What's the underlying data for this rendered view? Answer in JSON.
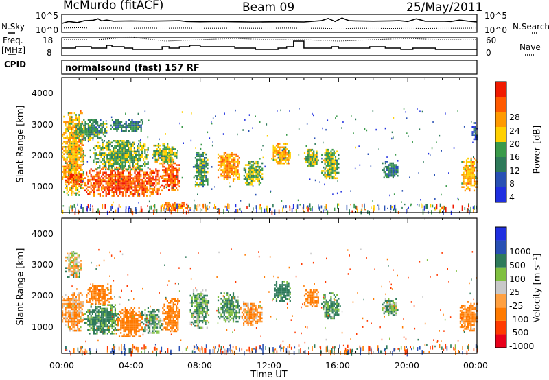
{
  "header": {
    "station": "McMurdo (fitACF)",
    "beam": "Beam 09",
    "date": "25/May/2011"
  },
  "noise_panel": {
    "left_label": "N.Sky",
    "right_label": "N.Search",
    "left_ticks": [
      "10^5",
      "10^0"
    ],
    "right_ticks": [
      "10^5",
      "10^0"
    ]
  },
  "freq_panel": {
    "left_label_line1": "Freq.",
    "left_label_line2": "[MHz]",
    "right_label": "Nave",
    "left_ticks": [
      "18",
      "8"
    ],
    "right_ticks": [
      "60",
      "0"
    ]
  },
  "cpid": {
    "label": "CPID",
    "value": "normalsound (fast) 157 RF"
  },
  "power_panel": {
    "ylabel": "Slant Range [km]",
    "yticks": [
      "4000",
      "3000",
      "2000",
      "1000"
    ],
    "colorbar_label": "Power [dB]",
    "colorbar_ticks": [
      "28",
      "24",
      "20",
      "16",
      "12",
      "8",
      "4"
    ]
  },
  "velocity_panel": {
    "ylabel": "Slant Range [km]",
    "yticks": [
      "4000",
      "3000",
      "2000",
      "1000"
    ],
    "colorbar_label": "Velocity [m s⁻¹]",
    "colorbar_ticks": [
      "1000",
      "500",
      "100",
      "25",
      "-25",
      "-100",
      "-500",
      "-1000"
    ]
  },
  "xaxis": {
    "label": "Time UT",
    "ticks": [
      "00:00",
      "04:00",
      "08:00",
      "12:00",
      "16:00",
      "20:00",
      "00:00"
    ]
  },
  "colors": {
    "power_scale": [
      "#1f2fe0",
      "#2850b4",
      "#2e7a5a",
      "#3a9a4a",
      "#ffd000",
      "#ff9a00",
      "#ff5a00",
      "#f01a00"
    ],
    "velocity_scale": [
      "#e8001a",
      "#ff3a00",
      "#ff7a00",
      "#ffa040",
      "#c8c8c8",
      "#80c040",
      "#2e7a5a",
      "#2850b4",
      "#1f2fe0"
    ]
  },
  "chart_data": [
    {
      "type": "line",
      "title": "N.Sky / N.Search",
      "x_unit": "hours UT",
      "xlim": [
        0,
        24
      ],
      "ylog": true,
      "ylim": [
        1,
        100000
      ],
      "series": [
        {
          "name": "N.Sky",
          "x": [
            0,
            0.4,
            0.9,
            1.3,
            1.8,
            2.1,
            2.3,
            2.6,
            3.0,
            4.0,
            5.0,
            6.0,
            6.8,
            7.2,
            8.0,
            9.0,
            10.0,
            11.0,
            12.0,
            13.0,
            14.0,
            15.0,
            15.4,
            15.8,
            16.2,
            16.6,
            17.0,
            18.0,
            19.0,
            19.5,
            20.0,
            20.5,
            21.0,
            21.5,
            22.0,
            22.5,
            23.0,
            23.5,
            24
          ],
          "values": [
            300,
            1500,
            600,
            3000,
            4000,
            15000,
            2500,
            5000,
            2000,
            2500,
            2000,
            2500,
            3000,
            1500,
            1200,
            1500,
            1200,
            1000,
            1100,
            1200,
            1000,
            3000,
            20000,
            1500,
            30000,
            3000,
            2500,
            2000,
            2500,
            3000,
            1500,
            15000,
            2000,
            1800,
            2000,
            1500,
            5000,
            2000,
            1000
          ]
        },
        {
          "name": "N.Search",
          "x": [
            0,
            1,
            2,
            3,
            4,
            5,
            6,
            7,
            8,
            9,
            10,
            11,
            12,
            13,
            14,
            15,
            16,
            17,
            18,
            19,
            20,
            21,
            22,
            23,
            24
          ],
          "values": [
            6,
            8,
            5,
            6,
            5,
            6,
            5,
            6,
            5,
            5,
            6,
            5,
            5,
            6,
            5,
            5,
            3,
            5,
            5,
            4,
            5,
            4,
            5,
            5,
            6
          ]
        }
      ]
    },
    {
      "type": "line",
      "title": "Freq. / Nave",
      "x_unit": "hours UT",
      "xlim": [
        0,
        24
      ],
      "ylim": [
        8,
        18
      ],
      "series": [
        {
          "name": "Freq. [MHz]",
          "x": [
            0,
            0.8,
            0.8,
            1.7,
            1.7,
            2.6,
            2.6,
            2.9,
            2.9,
            3.6,
            3.6,
            4.1,
            4.1,
            5.8,
            5.8,
            6.2,
            6.2,
            6.8,
            6.8,
            7.4,
            7.4,
            8.0,
            8.0,
            10.0,
            10.0,
            11.2,
            11.2,
            12.5,
            12.5,
            13.0,
            13.0,
            13.4,
            13.4,
            14.0,
            14.0,
            15.6,
            15.6,
            16.0,
            16.0,
            17.8,
            17.8,
            18.7,
            18.7,
            19.6,
            19.6,
            20.3,
            20.3,
            20.8,
            20.8,
            21.6,
            21.6,
            24
          ],
          "values": [
            12,
            12,
            13,
            13,
            12,
            12,
            14,
            14,
            13,
            13,
            12,
            12,
            11,
            11,
            13,
            13,
            12,
            12,
            13,
            13,
            14,
            14,
            13,
            13,
            12,
            12,
            11,
            11,
            12,
            12,
            13,
            13,
            17,
            17,
            12,
            12,
            13,
            13,
            12,
            12,
            13,
            13,
            12,
            12,
            11,
            11,
            12,
            12,
            12,
            12,
            11,
            11
          ]
        },
        {
          "name": "Nave",
          "x": [
            0,
            2,
            4,
            6,
            8,
            10,
            12,
            14,
            16,
            18,
            20,
            22,
            24
          ],
          "values": [
            18,
            18,
            20,
            17,
            18,
            19,
            18,
            18,
            17,
            18,
            19,
            18,
            18
          ]
        }
      ]
    },
    {
      "type": "heatmap",
      "title": "Power [dB]",
      "x_unit": "hours UT",
      "y_unit": "Slant Range [km]",
      "xlim": [
        0,
        24
      ],
      "ylim": [
        180,
        4600
      ],
      "color_range": [
        0,
        30
      ],
      "patches": [
        {
          "t0": 0.0,
          "t1": 1.3,
          "r0": 700,
          "r1": 3600,
          "level": 20
        },
        {
          "t0": 0.2,
          "t1": 1.3,
          "r0": 1100,
          "r1": 1500,
          "level": 26
        },
        {
          "t0": 0.8,
          "t1": 2.6,
          "r0": 2600,
          "r1": 3300,
          "level": 12
        },
        {
          "t0": 2.8,
          "t1": 3.7,
          "r0": 2900,
          "r1": 3300,
          "level": 10
        },
        {
          "t0": 1.3,
          "t1": 5.8,
          "r0": 700,
          "r1": 1700,
          "level": 26
        },
        {
          "t0": 1.8,
          "t1": 5.0,
          "r0": 1600,
          "r1": 2600,
          "level": 14
        },
        {
          "t0": 3.5,
          "t1": 4.7,
          "r0": 2900,
          "r1": 3300,
          "level": 10
        },
        {
          "t0": 5.8,
          "t1": 6.8,
          "r0": 900,
          "r1": 1900,
          "level": 26
        },
        {
          "t0": 5.2,
          "t1": 6.6,
          "r0": 1800,
          "r1": 2500,
          "level": 16
        },
        {
          "t0": 5.7,
          "t1": 7.2,
          "r0": 250,
          "r1": 500,
          "level": 24
        },
        {
          "t0": 7.6,
          "t1": 8.4,
          "r0": 1000,
          "r1": 2200,
          "level": 12
        },
        {
          "t0": 9.0,
          "t1": 10.3,
          "r0": 1200,
          "r1": 2200,
          "level": 22
        },
        {
          "t0": 10.5,
          "t1": 11.6,
          "r0": 1100,
          "r1": 1900,
          "level": 14
        },
        {
          "t0": 12.2,
          "t1": 13.2,
          "r0": 1800,
          "r1": 2500,
          "level": 20
        },
        {
          "t0": 14.0,
          "t1": 14.8,
          "r0": 1700,
          "r1": 2300,
          "level": 16
        },
        {
          "t0": 15.0,
          "t1": 16.0,
          "r0": 1300,
          "r1": 2300,
          "level": 16
        },
        {
          "t0": 18.5,
          "t1": 19.4,
          "r0": 1300,
          "r1": 1900,
          "level": 10
        },
        {
          "t0": 23.1,
          "t1": 24.0,
          "r0": 900,
          "r1": 2000,
          "level": 20
        },
        {
          "t0": 23.7,
          "t1": 24.0,
          "r0": 2600,
          "r1": 3200,
          "level": 6
        }
      ]
    },
    {
      "type": "heatmap",
      "title": "Velocity [m s⁻¹]",
      "x_unit": "hours UT",
      "y_unit": "Slant Range [km]",
      "xlim": [
        0,
        24
      ],
      "ylim": [
        180,
        4600
      ],
      "color_range": [
        -1000,
        1000
      ],
      "patches": [
        {
          "t0": 0.0,
          "t1": 1.3,
          "r0": 900,
          "r1": 2200,
          "level": -100
        },
        {
          "t0": 0.2,
          "t1": 1.1,
          "r0": 2700,
          "r1": 3600,
          "level": 0
        },
        {
          "t0": 1.3,
          "t1": 3.3,
          "r0": 800,
          "r1": 1800,
          "level": 150
        },
        {
          "t0": 1.4,
          "t1": 2.8,
          "r0": 1800,
          "r1": 2500,
          "level": -200
        },
        {
          "t0": 3.2,
          "t1": 4.6,
          "r0": 700,
          "r1": 1700,
          "level": -300
        },
        {
          "t0": 4.6,
          "t1": 5.8,
          "r0": 800,
          "r1": 1700,
          "level": 100
        },
        {
          "t0": 5.8,
          "t1": 6.8,
          "r0": 900,
          "r1": 2000,
          "level": -200
        },
        {
          "t0": 7.4,
          "t1": 8.5,
          "r0": 1000,
          "r1": 2300,
          "level": 100
        },
        {
          "t0": 9.0,
          "t1": 10.3,
          "r0": 1200,
          "r1": 2200,
          "level": 150
        },
        {
          "t0": 10.3,
          "t1": 11.6,
          "r0": 1100,
          "r1": 1900,
          "level": -100
        },
        {
          "t0": 12.2,
          "t1": 13.2,
          "r0": 1900,
          "r1": 2600,
          "level": 200
        },
        {
          "t0": 14.0,
          "t1": 14.8,
          "r0": 1700,
          "r1": 2300,
          "level": -150
        },
        {
          "t0": 15.0,
          "t1": 16.0,
          "r0": 1300,
          "r1": 2200,
          "level": 150
        },
        {
          "t0": 18.5,
          "t1": 19.4,
          "r0": 1400,
          "r1": 2000,
          "level": 100
        },
        {
          "t0": 23.0,
          "t1": 24.0,
          "r0": 900,
          "r1": 1900,
          "level": -150
        }
      ]
    }
  ]
}
